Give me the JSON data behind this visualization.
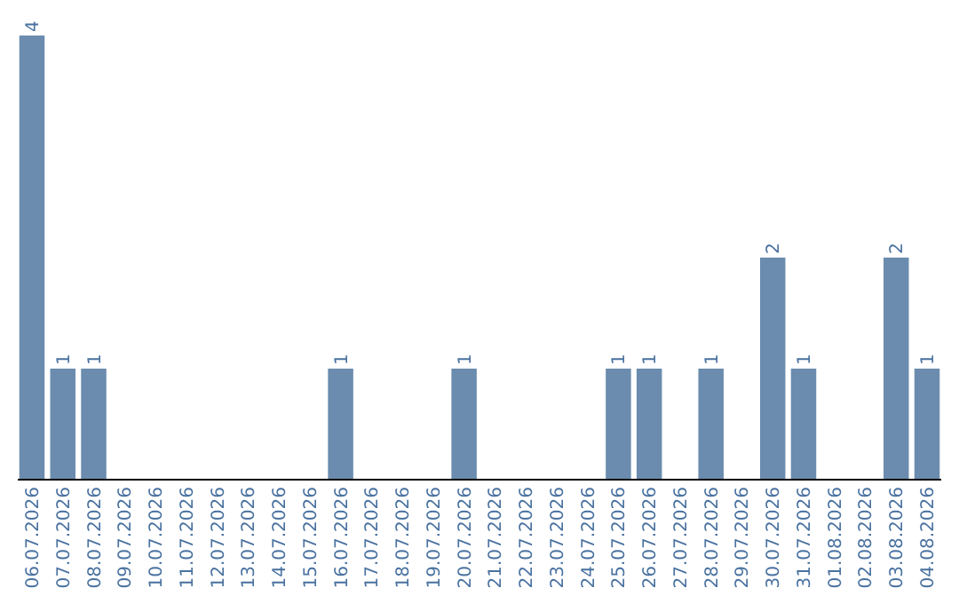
{
  "chart_data": {
    "type": "bar",
    "categories": [
      "06.07.2026",
      "07.07.2026",
      "08.07.2026",
      "09.07.2026",
      "10.07.2026",
      "11.07.2026",
      "12.07.2026",
      "13.07.2026",
      "14.07.2026",
      "15.07.2026",
      "16.07.2026",
      "17.07.2026",
      "18.07.2026",
      "19.07.2026",
      "20.07.2026",
      "21.07.2026",
      "22.07.2026",
      "23.07.2026",
      "24.07.2026",
      "25.07.2026",
      "26.07.2026",
      "27.07.2026",
      "28.07.2026",
      "29.07.2026",
      "30.07.2026",
      "31.07.2026",
      "01.08.2026",
      "02.08.2026",
      "03.08.2026",
      "04.08.2026"
    ],
    "values": [
      4,
      1,
      1,
      0,
      0,
      0,
      0,
      0,
      0,
      0,
      1,
      0,
      0,
      0,
      1,
      0,
      0,
      0,
      0,
      1,
      1,
      0,
      1,
      0,
      2,
      1,
      0,
      0,
      2,
      1
    ],
    "value_labels": [
      "4",
      "1",
      "1",
      null,
      null,
      null,
      null,
      null,
      null,
      null,
      "1",
      null,
      null,
      null,
      "1",
      null,
      null,
      null,
      null,
      "1",
      "1",
      null,
      "1",
      null,
      "2",
      "1",
      null,
      null,
      "2",
      "1"
    ],
    "color": "#6b8cae"
  }
}
